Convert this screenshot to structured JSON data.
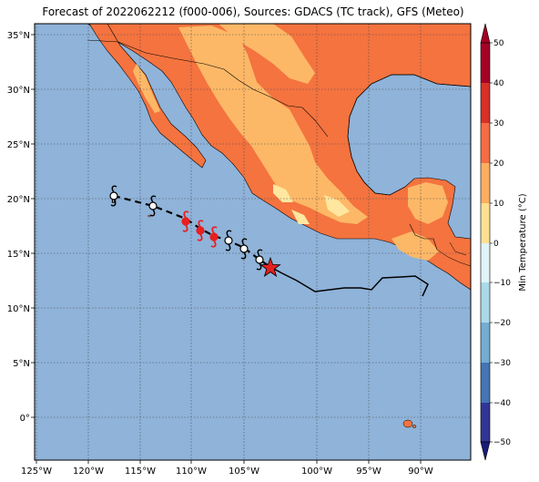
{
  "title": "Forecast of 2022062212 (f000-006), Sources: GDACS (TC track), GFS (Meteo)",
  "map": {
    "lon_labels": [
      "125°W",
      "120°W",
      "115°W",
      "110°W",
      "105°W",
      "100°W",
      "95°W",
      "90°W"
    ],
    "lat_labels": [
      "35°N",
      "30°N",
      "25°N",
      "20°N",
      "15°N",
      "10°N",
      "5°N",
      "0°"
    ],
    "ocean_color": "#8fb3d9",
    "land_colors": {
      "warm": "#f4733f",
      "mild": "#fdb867",
      "cool": "#ffe7a0",
      "hot": "#e83a2a"
    }
  },
  "colorbar": {
    "label": "Min Temperature (°C)",
    "ticks": [
      "50",
      "40",
      "30",
      "20",
      "10",
      "0",
      "−10",
      "−20",
      "−30",
      "−40",
      "−50"
    ],
    "colors": [
      "#a50026",
      "#d73027",
      "#f46d43",
      "#fdae61",
      "#fee090",
      "#ffffbf",
      "#e0f3f8",
      "#abd9e9",
      "#74add1",
      "#4575b4",
      "#313695"
    ]
  },
  "track": {
    "symbols": [
      "hurricane-white",
      "hurricane-white",
      "hurricane-red",
      "hurricane-red",
      "hurricane-red",
      "hurricane-white",
      "hurricane-white",
      "hurricane-white"
    ],
    "current_position_marker": "red-star",
    "forecast_line_style": "dashed"
  }
}
